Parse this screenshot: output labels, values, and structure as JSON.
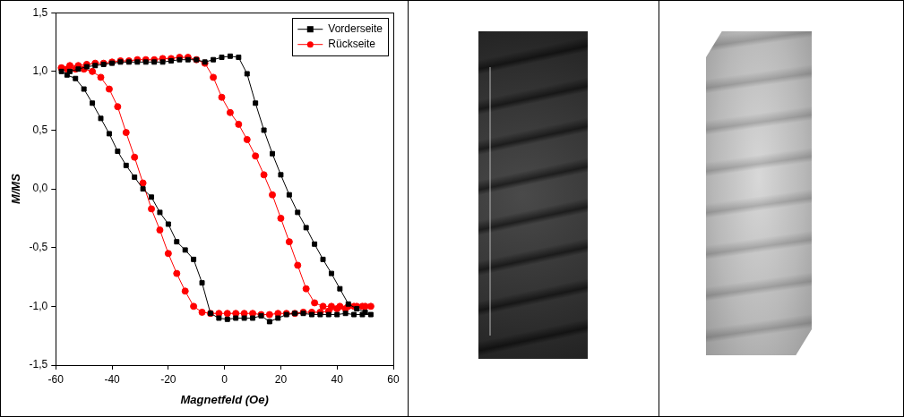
{
  "chart_data": {
    "type": "scatter",
    "x_label": "Magnetfeld (Oe)",
    "y_label": "M/MS",
    "xlim": [
      -60,
      60
    ],
    "xticks": [
      -60,
      -40,
      -20,
      0,
      20,
      40,
      60
    ],
    "ylim": [
      -1.5,
      1.5
    ],
    "yticks": [
      {
        "value": -1.5,
        "label": "-1,5"
      },
      {
        "value": -1.0,
        "label": "-1,0"
      },
      {
        "value": -0.5,
        "label": "-0,5"
      },
      {
        "value": 0,
        "label": "0,0"
      },
      {
        "value": 0.5,
        "label": "0,5"
      },
      {
        "value": 1.0,
        "label": "1,0"
      },
      {
        "value": 1.5,
        "label": "1,5"
      }
    ],
    "grid": false,
    "legend": "top-right",
    "series": [
      {
        "name": "Vorderseite",
        "color": "#000000",
        "marker": "square",
        "line_style": "solid",
        "x": [
          -55,
          -52,
          -49,
          -46,
          -43,
          -40,
          -37,
          -34,
          -31,
          -28,
          -25,
          -22,
          -19,
          -16,
          -13,
          -10,
          -7,
          -4,
          -1,
          2,
          5,
          8,
          11,
          14,
          17,
          20,
          23,
          26,
          29,
          32,
          35,
          38,
          41,
          44,
          47,
          50,
          52,
          49,
          46,
          43,
          40,
          37,
          34,
          31,
          28,
          25,
          22,
          19,
          16,
          13,
          10,
          7,
          4,
          1,
          -2,
          -5,
          -8,
          -11,
          -14,
          -17,
          -20,
          -23,
          -26,
          -29,
          -32,
          -35,
          -38,
          -41,
          -44,
          -47,
          -50,
          -53,
          -56,
          -58
        ],
        "values": [
          1.0,
          1.02,
          1.04,
          1.05,
          1.06,
          1.07,
          1.08,
          1.08,
          1.08,
          1.08,
          1.08,
          1.08,
          1.09,
          1.1,
          1.1,
          1.1,
          1.08,
          1.1,
          1.12,
          1.13,
          1.12,
          0.98,
          0.73,
          0.5,
          0.3,
          0.12,
          -0.05,
          -0.2,
          -0.33,
          -0.47,
          -0.6,
          -0.72,
          -0.85,
          -0.98,
          -1.02,
          -1.05,
          -1.07,
          -1.07,
          -1.07,
          -1.06,
          -1.07,
          -1.07,
          -1.07,
          -1.07,
          -1.06,
          -1.06,
          -1.07,
          -1.1,
          -1.13,
          -1.08,
          -1.1,
          -1.1,
          -1.1,
          -1.11,
          -1.1,
          -1.06,
          -0.8,
          -0.6,
          -0.52,
          -0.45,
          -0.3,
          -0.2,
          -0.07,
          0.0,
          0.1,
          0.2,
          0.32,
          0.47,
          0.6,
          0.73,
          0.85,
          0.94,
          0.97,
          1.0
        ]
      },
      {
        "name": "Rückseite",
        "color": "#ff0000",
        "marker": "circle",
        "line_style": "solid",
        "x": [
          -58,
          -55,
          -52,
          -49,
          -46,
          -43,
          -40,
          -37,
          -34,
          -31,
          -28,
          -25,
          -22,
          -19,
          -16,
          -13,
          -10,
          -7,
          -4,
          -1,
          2,
          5,
          8,
          11,
          14,
          17,
          20,
          23,
          26,
          29,
          32,
          35,
          38,
          41,
          44,
          47,
          50,
          52,
          49,
          46,
          43,
          40,
          37,
          34,
          31,
          28,
          25,
          22,
          19,
          16,
          13,
          10,
          7,
          4,
          1,
          -2,
          -5,
          -8,
          -11,
          -14,
          -17,
          -20,
          -23,
          -26,
          -29,
          -32,
          -35,
          -38,
          -41,
          -44,
          -47,
          -50,
          -53,
          -56,
          -58
        ],
        "values": [
          1.03,
          1.05,
          1.05,
          1.06,
          1.07,
          1.07,
          1.08,
          1.09,
          1.09,
          1.1,
          1.1,
          1.1,
          1.11,
          1.11,
          1.12,
          1.12,
          1.1,
          1.07,
          0.95,
          0.78,
          0.65,
          0.55,
          0.42,
          0.28,
          0.12,
          -0.05,
          -0.25,
          -0.45,
          -0.65,
          -0.85,
          -0.97,
          -1.0,
          -1.0,
          -1.0,
          -1.0,
          -1.0,
          -1.0,
          -1.0,
          -1.0,
          -1.0,
          -1.02,
          -1.02,
          -1.04,
          -1.05,
          -1.05,
          -1.05,
          -1.06,
          -1.06,
          -1.06,
          -1.07,
          -1.07,
          -1.06,
          -1.06,
          -1.06,
          -1.06,
          -1.06,
          -1.06,
          -1.05,
          -1.0,
          -0.87,
          -0.72,
          -0.55,
          -0.35,
          -0.17,
          0.05,
          0.27,
          0.48,
          0.7,
          0.85,
          0.95,
          1.0,
          1.02,
          1.02,
          1.02,
          1.03
        ]
      }
    ]
  }
}
